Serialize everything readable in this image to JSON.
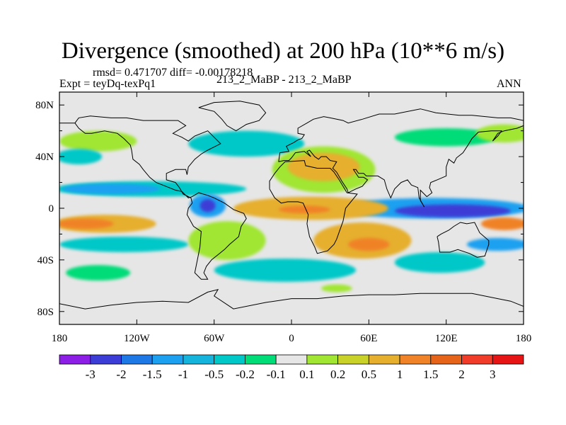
{
  "title": "Divergence (smoothed) at 200 hPa (10**6 m/s)",
  "stats": {
    "rmsd_label": "rmsd=",
    "rmsd_value": "0.471707",
    "diff_label": "diff=",
    "diff_value": "-0.00178218"
  },
  "expt_label": "Expt = teyDq-texPq1",
  "subtitle": "213_2_MaBP - 213_2_MaBP",
  "period": "ANN",
  "map": {
    "projection": "cylindrical equidistant",
    "lon_range": [
      -180,
      180
    ],
    "lat_range": [
      -90,
      90
    ],
    "y_ticks": [
      {
        "lat": 80,
        "label": "80N"
      },
      {
        "lat": 40,
        "label": "40N"
      },
      {
        "lat": 0,
        "label": "0"
      },
      {
        "lat": -40,
        "label": "40S"
      },
      {
        "lat": -80,
        "label": "80S"
      }
    ],
    "x_ticks": [
      {
        "lon": -180,
        "label": "180"
      },
      {
        "lon": -120,
        "label": "120W"
      },
      {
        "lon": -60,
        "label": "60W"
      },
      {
        "lon": 0,
        "label": "0"
      },
      {
        "lon": 60,
        "label": "60E"
      },
      {
        "lon": 120,
        "label": "120E"
      },
      {
        "lon": 180,
        "label": "180"
      }
    ],
    "background_color": "#e6e6e6",
    "field_blobs": [
      {
        "lon": -35,
        "lat": 50,
        "rlon": 45,
        "rlat": 10,
        "color": "#00c8c8",
        "note": "N Atlantic convergence"
      },
      {
        "lon": -150,
        "lat": 52,
        "rlon": 30,
        "rlat": 8,
        "color": "#a0e632",
        "note": "N Pacific"
      },
      {
        "lon": -165,
        "lat": 40,
        "rlon": 18,
        "rlat": 6,
        "color": "#00c8c8"
      },
      {
        "lon": 120,
        "lat": 55,
        "rlon": 40,
        "rlat": 7,
        "color": "#00dc78"
      },
      {
        "lon": 165,
        "lat": 58,
        "rlon": 22,
        "rlat": 7,
        "color": "#a0e632"
      },
      {
        "lon": 25,
        "lat": 30,
        "rlon": 40,
        "rlat": 18,
        "color": "#a0e632"
      },
      {
        "lon": 25,
        "lat": 32,
        "rlon": 28,
        "rlat": 11,
        "color": "#e6af2d"
      },
      {
        "lon": -110,
        "lat": 15,
        "rlon": 75,
        "rlat": 6,
        "color": "#00c8c8"
      },
      {
        "lon": -140,
        "lat": 15,
        "rlon": 38,
        "rlat": 4,
        "color": "#1ea0f0"
      },
      {
        "lon": -65,
        "lat": 2,
        "rlon": 14,
        "rlat": 9,
        "color": "#1ea0f0"
      },
      {
        "lon": -65,
        "lat": 2,
        "rlon": 6,
        "rlat": 5,
        "color": "#3c3cd6"
      },
      {
        "lon": 110,
        "lat": 0,
        "rlon": 75,
        "rlat": 8,
        "color": "#1ea0f0"
      },
      {
        "lon": 125,
        "lat": -2,
        "rlon": 45,
        "rlat": 5,
        "color": "#3c3cd6"
      },
      {
        "lon": 15,
        "lat": 0,
        "rlon": 60,
        "rlat": 9,
        "color": "#e6af2d"
      },
      {
        "lon": 10,
        "lat": -1,
        "rlon": 20,
        "rlat": 3,
        "color": "#f08228"
      },
      {
        "lon": -145,
        "lat": -12,
        "rlon": 40,
        "rlat": 7,
        "color": "#e6af2d"
      },
      {
        "lon": -160,
        "lat": -12,
        "rlon": 22,
        "rlat": 4,
        "color": "#f08228"
      },
      {
        "lon": 165,
        "lat": -12,
        "rlon": 18,
        "rlat": 5,
        "color": "#f08228"
      },
      {
        "lon": -130,
        "lat": -28,
        "rlon": 50,
        "rlat": 6,
        "color": "#00c8c8"
      },
      {
        "lon": 160,
        "lat": -28,
        "rlon": 24,
        "rlat": 5,
        "color": "#1ea0f0"
      },
      {
        "lon": 55,
        "lat": -25,
        "rlon": 38,
        "rlat": 14,
        "color": "#e6af2d"
      },
      {
        "lon": 60,
        "lat": -28,
        "rlon": 16,
        "rlat": 5,
        "color": "#f08228"
      },
      {
        "lon": -50,
        "lat": -25,
        "rlon": 30,
        "rlat": 15,
        "color": "#a0e632"
      },
      {
        "lon": -5,
        "lat": -48,
        "rlon": 55,
        "rlat": 9,
        "color": "#00c8c8"
      },
      {
        "lon": 115,
        "lat": -42,
        "rlon": 35,
        "rlat": 8,
        "color": "#00c8c8"
      },
      {
        "lon": -150,
        "lat": -50,
        "rlon": 25,
        "rlat": 6,
        "color": "#00dc78"
      },
      {
        "lon": 35,
        "lat": -62,
        "rlon": 12,
        "rlat": 3,
        "color": "#a0e632"
      }
    ],
    "coastlines": [
      [
        [
          -180,
          66
        ],
        [
          -168,
          66
        ],
        [
          -165,
          70
        ],
        [
          -156,
          71.5
        ],
        [
          -140,
          70
        ],
        [
          -128,
          70
        ],
        [
          -115,
          68
        ],
        [
          -100,
          68
        ],
        [
          -88,
          68
        ],
        [
          -82,
          64
        ],
        [
          -92,
          58
        ],
        [
          -85,
          55
        ],
        [
          -80,
          52
        ],
        [
          -75,
          56
        ],
        [
          -65,
          60
        ],
        [
          -60,
          55
        ],
        [
          -55,
          50
        ],
        [
          -65,
          45
        ],
        [
          -70,
          42
        ],
        [
          -75,
          38
        ],
        [
          -80,
          32
        ],
        [
          -81,
          26
        ],
        [
          -82,
          30
        ],
        [
          -90,
          30
        ],
        [
          -97,
          27
        ],
        [
          -97,
          22
        ],
        [
          -90,
          20
        ],
        [
          -87,
          16
        ],
        [
          -84,
          11
        ],
        [
          -78,
          8
        ],
        [
          -77,
          4
        ],
        [
          -80,
          0
        ],
        [
          -81,
          -5
        ],
        [
          -76,
          -14
        ],
        [
          -70,
          -18
        ],
        [
          -71,
          -30
        ],
        [
          -73,
          -40
        ],
        [
          -75,
          -50
        ],
        [
          -70,
          -55
        ],
        [
          -65,
          -55
        ],
        [
          -68,
          -50
        ],
        [
          -66,
          -45
        ],
        [
          -62,
          -40
        ],
        [
          -57,
          -36
        ],
        [
          -52,
          -32
        ],
        [
          -48,
          -28
        ],
        [
          -41,
          -22
        ],
        [
          -39,
          -14
        ],
        [
          -35,
          -8
        ],
        [
          -37,
          -4
        ],
        [
          -45,
          -1
        ],
        [
          -52,
          4
        ],
        [
          -60,
          8
        ],
        [
          -65,
          10
        ],
        [
          -72,
          12
        ],
        [
          -77,
          9
        ],
        [
          -80,
          8
        ],
        [
          -85,
          13
        ],
        [
          -90,
          14
        ],
        [
          -95,
          16
        ],
        [
          -105,
          20
        ],
        [
          -110,
          24
        ],
        [
          -115,
          30
        ],
        [
          -118,
          34
        ],
        [
          -123,
          38
        ],
        [
          -124,
          45
        ],
        [
          -125,
          49
        ],
        [
          -130,
          54
        ],
        [
          -135,
          58
        ],
        [
          -145,
          60
        ],
        [
          -155,
          58
        ],
        [
          -160,
          58
        ],
        [
          -165,
          62
        ],
        [
          -168,
          66
        ]
      ],
      [
        [
          -72,
          78
        ],
        [
          -60,
          82
        ],
        [
          -40,
          83
        ],
        [
          -25,
          80
        ],
        [
          -20,
          74
        ],
        [
          -25,
          68
        ],
        [
          -35,
          65
        ],
        [
          -43,
          60
        ],
        [
          -50,
          64
        ],
        [
          -54,
          69
        ],
        [
          -60,
          75
        ],
        [
          -72,
          78
        ]
      ],
      [
        [
          -17,
          15
        ],
        [
          -17,
          21
        ],
        [
          -13,
          27
        ],
        [
          -9,
          32
        ],
        [
          -5,
          36
        ],
        [
          10,
          37
        ],
        [
          11,
          33
        ],
        [
          20,
          31
        ],
        [
          30,
          31
        ],
        [
          33,
          28
        ],
        [
          37,
          22
        ],
        [
          43,
          12
        ],
        [
          51,
          11
        ],
        [
          42,
          0
        ],
        [
          40,
          -10
        ],
        [
          35,
          -24
        ],
        [
          33,
          -28
        ],
        [
          28,
          -33
        ],
        [
          20,
          -35
        ],
        [
          18,
          -30
        ],
        [
          14,
          -22
        ],
        [
          12,
          -12
        ],
        [
          13,
          -5
        ],
        [
          9,
          4
        ],
        [
          5,
          5
        ],
        [
          -3,
          5
        ],
        [
          -8,
          4
        ],
        [
          -13,
          8
        ],
        [
          -17,
          15
        ]
      ],
      [
        [
          -10,
          36
        ],
        [
          -9,
          43
        ],
        [
          -2,
          44
        ],
        [
          -4,
          48
        ],
        [
          2,
          51
        ],
        [
          5,
          53
        ],
        [
          8,
          54
        ],
        [
          10,
          57
        ],
        [
          5,
          58
        ],
        [
          5,
          62
        ],
        [
          12,
          66
        ],
        [
          17,
          69
        ],
        [
          25,
          71
        ],
        [
          30,
          70
        ],
        [
          40,
          68
        ],
        [
          44,
          66
        ],
        [
          55,
          69
        ],
        [
          68,
          73
        ],
        [
          80,
          73
        ],
        [
          100,
          77
        ],
        [
          112,
          74
        ],
        [
          130,
          72
        ],
        [
          140,
          72
        ],
        [
          160,
          70
        ],
        [
          170,
          70
        ],
        [
          180,
          68
        ]
      ],
      [
        [
          180,
          64
        ],
        [
          175,
          62
        ],
        [
          165,
          60
        ],
        [
          160,
          58
        ],
        [
          156,
          52
        ],
        [
          160,
          56
        ],
        [
          163,
          60
        ],
        [
          155,
          60
        ],
        [
          145,
          59
        ],
        [
          140,
          54
        ],
        [
          137,
          49
        ],
        [
          133,
          43
        ],
        [
          128,
          39
        ],
        [
          126,
          35
        ],
        [
          122,
          38
        ],
        [
          120,
          32
        ],
        [
          120,
          25
        ],
        [
          113,
          22
        ],
        [
          108,
          20
        ],
        [
          107,
          16
        ],
        [
          109,
          12
        ],
        [
          105,
          9
        ],
        [
          103,
          11
        ],
        [
          100,
          14
        ],
        [
          100,
          6
        ],
        [
          103,
          1
        ],
        [
          99,
          8
        ],
        [
          98,
          16
        ],
        [
          93,
          18
        ],
        [
          90,
          22
        ],
        [
          85,
          20
        ],
        [
          80,
          15
        ],
        [
          77,
          8
        ],
        [
          74,
          15
        ],
        [
          72,
          22
        ],
        [
          67,
          25
        ],
        [
          58,
          25
        ],
        [
          56,
          27
        ],
        [
          52,
          27
        ],
        [
          50,
          30
        ],
        [
          48,
          30
        ],
        [
          52,
          24
        ],
        [
          56,
          24
        ],
        [
          59,
          22
        ],
        [
          55,
          17
        ],
        [
          50,
          15
        ],
        [
          44,
          12
        ],
        [
          43,
          15
        ],
        [
          39,
          21
        ],
        [
          35,
          28
        ],
        [
          32,
          31
        ],
        [
          35,
          36
        ],
        [
          30,
          37
        ],
        [
          27,
          40
        ],
        [
          23,
          40
        ],
        [
          21,
          38
        ],
        [
          18,
          40
        ],
        [
          14,
          45
        ],
        [
          12,
          44
        ],
        [
          15,
          40
        ],
        [
          10,
          44
        ],
        [
          3,
          43
        ],
        [
          0,
          39
        ],
        [
          -2,
          37
        ],
        [
          -6,
          37
        ],
        [
          -10,
          36
        ]
      ],
      [
        [
          113,
          -22
        ],
        [
          114,
          -26
        ],
        [
          115,
          -34
        ],
        [
          123,
          -34
        ],
        [
          129,
          -32
        ],
        [
          138,
          -35
        ],
        [
          144,
          -38
        ],
        [
          150,
          -37
        ],
        [
          153,
          -28
        ],
        [
          153,
          -25
        ],
        [
          146,
          -19
        ],
        [
          142,
          -11
        ],
        [
          136,
          -12
        ],
        [
          131,
          -11
        ],
        [
          126,
          -14
        ],
        [
          122,
          -17
        ],
        [
          116,
          -20
        ],
        [
          113,
          -22
        ]
      ],
      [
        [
          -180,
          -74
        ],
        [
          -160,
          -78
        ],
        [
          -140,
          -75
        ],
        [
          -120,
          -73
        ],
        [
          -100,
          -72
        ],
        [
          -80,
          -73
        ],
        [
          -65,
          -65
        ],
        [
          -57,
          -63
        ],
        [
          -60,
          -68
        ],
        [
          -45,
          -78
        ],
        [
          -20,
          -73
        ],
        [
          0,
          -70
        ],
        [
          20,
          -70
        ],
        [
          40,
          -68
        ],
        [
          60,
          -67
        ],
        [
          80,
          -67
        ],
        [
          100,
          -66
        ],
        [
          120,
          -66
        ],
        [
          140,
          -66
        ],
        [
          160,
          -70
        ],
        [
          170,
          -72
        ],
        [
          180,
          -76
        ]
      ]
    ]
  },
  "colorbar": {
    "colors": [
      "#8c1ee6",
      "#3c3cd6",
      "#1e78e6",
      "#1ea0f0",
      "#14b4dc",
      "#00c8c8",
      "#00dc78",
      "#e6e6e6",
      "#a0e632",
      "#c8d228",
      "#e6af2d",
      "#f08228",
      "#e66419",
      "#f03c28",
      "#e61414"
    ],
    "labels": [
      "-3",
      "-2",
      "-1.5",
      "-1",
      "-0.5",
      "-0.2",
      "-0.1",
      "0.1",
      "0.2",
      "0.5",
      "1",
      "1.5",
      "2",
      "3"
    ]
  }
}
